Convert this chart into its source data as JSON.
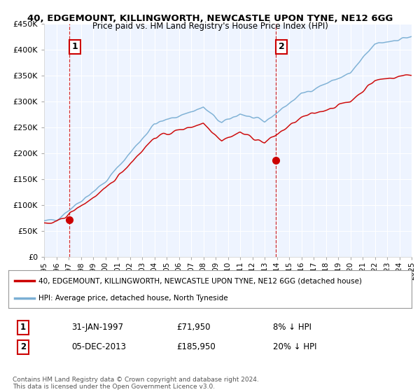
{
  "title": "40, EDGEMOUNT, KILLINGWORTH, NEWCASTLE UPON TYNE, NE12 6GG",
  "subtitle": "Price paid vs. HM Land Registry's House Price Index (HPI)",
  "legend_line1": "40, EDGEMOUNT, KILLINGWORTH, NEWCASTLE UPON TYNE, NE12 6GG (detached house)",
  "legend_line2": "HPI: Average price, detached house, North Tyneside",
  "sale1_label": "1",
  "sale1_date": "31-JAN-1997",
  "sale1_price": "£71,950",
  "sale1_hpi": "8% ↓ HPI",
  "sale1_x": 1997.08,
  "sale1_y": 71950,
  "sale2_label": "2",
  "sale2_date": "05-DEC-2013",
  "sale2_price": "£185,950",
  "sale2_hpi": "20% ↓ HPI",
  "sale2_x": 2013.92,
  "sale2_y": 185950,
  "xmin": 1995,
  "xmax": 2025,
  "ymin": 0,
  "ymax": 450000,
  "yticks": [
    0,
    50000,
    100000,
    150000,
    200000,
    250000,
    300000,
    350000,
    400000,
    450000
  ],
  "ytick_labels": [
    "£0",
    "£50K",
    "£100K",
    "£150K",
    "£200K",
    "£250K",
    "£300K",
    "£350K",
    "£400K",
    "£450K"
  ],
  "background_color": "#EEF4FF",
  "grid_color": "#FFFFFF",
  "hpi_color": "#7BAFD4",
  "price_color": "#CC0000",
  "vline_color": "#CC0000",
  "footnote": "Contains HM Land Registry data © Crown copyright and database right 2024.\nThis data is licensed under the Open Government Licence v3.0."
}
